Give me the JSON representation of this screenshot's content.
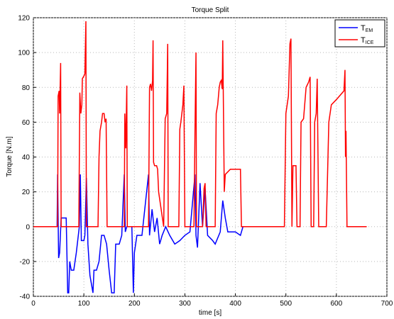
{
  "chart_data": {
    "type": "line",
    "title": "Torque Split",
    "xlabel": "time [s]",
    "ylabel": "Torque [N.m]",
    "xlim": [
      0,
      700
    ],
    "ylim": [
      -40,
      120
    ],
    "xticks": [
      0,
      100,
      200,
      300,
      400,
      500,
      600,
      700
    ],
    "yticks": [
      -40,
      -20,
      0,
      20,
      40,
      60,
      80,
      100,
      120
    ],
    "grid": true,
    "legend": "upper right",
    "series": [
      {
        "name": "TEM",
        "color": "#0000ff",
        "x": [
          0,
          47,
          48,
          50,
          52,
          55,
          65,
          68,
          70,
          72,
          75,
          80,
          85,
          91,
          93,
          95,
          100,
          102,
          105,
          108,
          112,
          118,
          120,
          125,
          130,
          135,
          140,
          145,
          150,
          155,
          160,
          163,
          170,
          175,
          180,
          182,
          185,
          195,
          198,
          200,
          205,
          215,
          228,
          230,
          235,
          240,
          245,
          250,
          255,
          262,
          270,
          280,
          290,
          300,
          310,
          320,
          322,
          325,
          330,
          335,
          340,
          345,
          355,
          360,
          370,
          375,
          380,
          385,
          400,
          410,
          415,
          430
        ],
        "values": [
          0,
          0,
          30,
          -18,
          -15,
          5,
          5,
          -38,
          -38,
          -20,
          -25,
          -25,
          -15,
          0,
          30,
          -8,
          -8,
          -5,
          28,
          -10,
          -28,
          -38,
          -25,
          -25,
          -20,
          -5,
          -5,
          -10,
          -25,
          -38,
          -38,
          -10,
          -10,
          -5,
          30,
          -3,
          0,
          0,
          -38,
          -15,
          -5,
          -5,
          30,
          -5,
          10,
          -3,
          5,
          -10,
          -5,
          0,
          -5,
          -10,
          -8,
          -5,
          -3,
          30,
          -5,
          -12,
          25,
          0,
          22,
          -5,
          -8,
          -10,
          -3,
          15,
          5,
          -3,
          -3,
          -5,
          0,
          0
        ]
      },
      {
        "name": "TICE",
        "color": "#ff0000",
        "x": [
          0,
          48,
          49,
          51,
          52,
          54,
          55,
          90,
          92,
          94,
          96,
          97,
          101,
          102,
          104,
          105,
          128,
          130,
          132,
          135,
          137,
          140,
          142,
          144,
          146,
          180,
          181,
          183,
          185,
          186,
          228,
          230,
          232,
          234,
          236,
          237,
          238,
          240,
          244,
          246,
          248,
          258,
          261,
          264,
          266,
          267,
          288,
          290,
          292,
          296,
          298,
          300,
          318,
          320,
          322,
          323,
          335,
          338,
          340,
          342,
          360,
          362,
          365,
          368,
          370,
          372,
          374,
          375,
          378,
          380,
          390,
          410,
          412,
          495,
          497,
          500,
          505,
          508,
          510,
          512,
          514,
          520,
          522,
          528,
          530,
          535,
          540,
          545,
          548,
          550,
          555,
          557,
          560,
          562,
          565,
          580,
          585,
          590,
          600,
          615,
          617,
          618,
          619,
          621,
          660
        ],
        "values": [
          0,
          0,
          75,
          78,
          65,
          94,
          0,
          0,
          77,
          65,
          70,
          85,
          87,
          88,
          118,
          0,
          0,
          40,
          55,
          60,
          65,
          65,
          60,
          62,
          0,
          0,
          65,
          45,
          81,
          0,
          0,
          80,
          82,
          78,
          84,
          107,
          37,
          35,
          35,
          33,
          20,
          0,
          62,
          65,
          105,
          0,
          0,
          56,
          60,
          70,
          81,
          0,
          0,
          55,
          100,
          0,
          0,
          22,
          25,
          0,
          0,
          65,
          70,
          80,
          83,
          84,
          79,
          107,
          20,
          30,
          33,
          33,
          0,
          0,
          0,
          65,
          75,
          105,
          108,
          0,
          35,
          35,
          0,
          0,
          60,
          62,
          80,
          83,
          86,
          0,
          0,
          60,
          65,
          85,
          0,
          0,
          60,
          70,
          73,
          78,
          90,
          40,
          55,
          0,
          0
        ]
      }
    ]
  }
}
